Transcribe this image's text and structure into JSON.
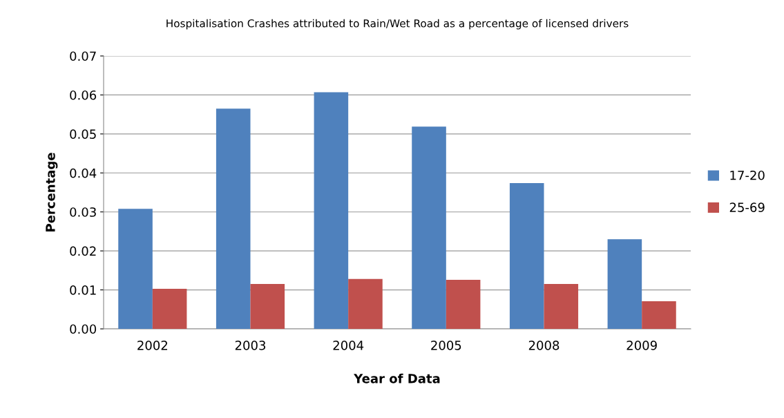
{
  "chart_data": {
    "type": "bar",
    "title": "Hospitalisation Crashes attributed to Rain/Wet Road as a percentage of licensed drivers",
    "xlabel": "Year of Data",
    "ylabel": "Percentage",
    "categories": [
      "2002",
      "2003",
      "2004",
      "2005",
      "2008",
      "2009"
    ],
    "series": [
      {
        "name": "17-20",
        "color": "#4f81bd",
        "values": [
          0.0308,
          0.0565,
          0.0607,
          0.0519,
          0.0374,
          0.023
        ]
      },
      {
        "name": "25-69",
        "color": "#c0504d",
        "values": [
          0.0103,
          0.0115,
          0.0128,
          0.0126,
          0.0115,
          0.0071
        ]
      }
    ],
    "ylim": [
      0,
      0.07
    ],
    "yticks": [
      {
        "value": 0,
        "label": "0.00"
      },
      {
        "value": 0.01,
        "label": "0.01"
      },
      {
        "value": 0.02,
        "label": "0.02"
      },
      {
        "value": 0.03,
        "label": "0.03"
      },
      {
        "value": 0.04,
        "label": "0.04"
      },
      {
        "value": 0.05,
        "label": "0.05"
      },
      {
        "value": 0.06,
        "label": "0.06"
      },
      {
        "value": 0.07,
        "label": "0.07"
      }
    ],
    "grid": "y",
    "legend": "right"
  }
}
